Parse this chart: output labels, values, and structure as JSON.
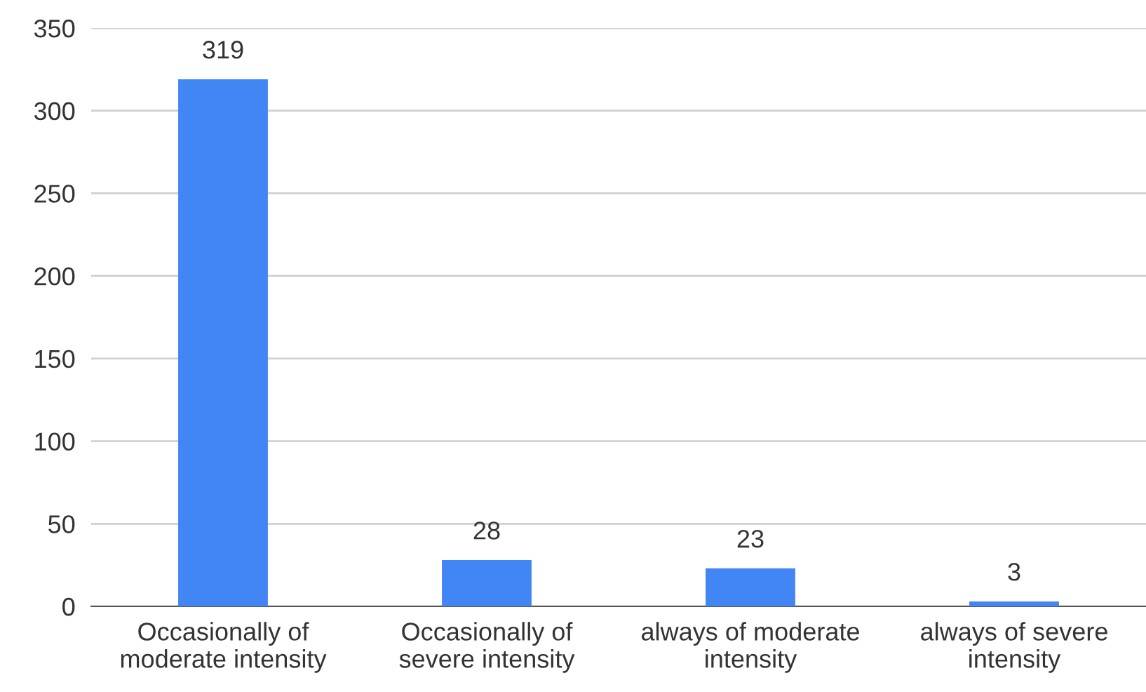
{
  "chart_data": {
    "type": "bar",
    "categories": [
      "Occasionally of\nmoderate intensity",
      "Occasionally of\nsevere intensity",
      "always of moderate\nintensity",
      "always of severe\nintensity"
    ],
    "values": [
      319,
      28,
      23,
      3
    ],
    "color": "#4285f4",
    "ylim": [
      0,
      350
    ],
    "yticks": [
      0,
      50,
      100,
      150,
      200,
      250,
      300,
      350
    ],
    "grid": "y",
    "data_labels": true
  }
}
